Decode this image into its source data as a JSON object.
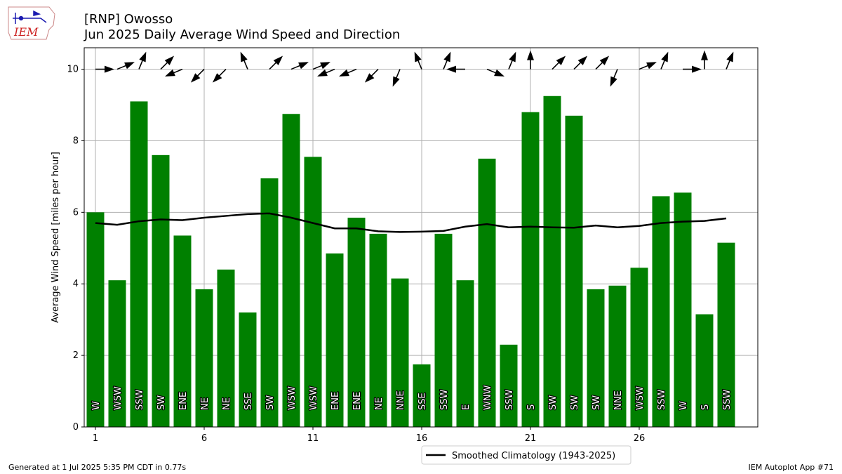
{
  "header": {
    "station": "[RNP] Owosso",
    "subtitle": "Jun 2025 Daily Average Wind Speed and Direction",
    "logo_text": "IEM"
  },
  "footer": {
    "generated": "Generated at 1 Jul 2025 5:35 PM CDT in 0.77s",
    "app": "IEM Autoplot App #71"
  },
  "colors": {
    "bar": "#008000",
    "climo_line": "#000000",
    "grid": "#b0b0b0",
    "logo_text": "#cc2222",
    "logo_icon": "#1a1ab0"
  },
  "chart_data": {
    "type": "bar",
    "ylabel": "Average Wind Speed [miles per hour]",
    "ylim": [
      0,
      10.6
    ],
    "yticks": [
      0,
      2,
      4,
      6,
      8,
      10
    ],
    "xticks": [
      1,
      6,
      11,
      16,
      21,
      26
    ],
    "grid": true,
    "legend_position": "bottom-center",
    "days": [
      1,
      2,
      3,
      4,
      5,
      6,
      7,
      8,
      9,
      10,
      11,
      12,
      13,
      14,
      15,
      16,
      17,
      18,
      19,
      20,
      21,
      22,
      23,
      24,
      25,
      26,
      27,
      28,
      29,
      30
    ],
    "series": [
      {
        "type": "bar",
        "values": [
          6.0,
          4.1,
          9.1,
          7.6,
          5.35,
          3.85,
          4.4,
          3.2,
          6.95,
          8.75,
          7.55,
          4.85,
          5.85,
          5.4,
          4.15,
          1.75,
          5.4,
          4.1,
          7.5,
          2.3,
          8.8,
          9.25,
          8.7,
          3.85,
          3.95,
          4.45,
          6.45,
          6.55,
          3.15,
          5.15
        ],
        "direction_labels": [
          "W",
          "WSW",
          "SSW",
          "SW",
          "ENE",
          "NE",
          "NE",
          "SSE",
          "SW",
          "WSW",
          "WSW",
          "ENE",
          "ENE",
          "NE",
          "NNE",
          "SSE",
          "SSW",
          "E",
          "WNW",
          "SSW",
          "S",
          "SW",
          "SW",
          "SW",
          "NNE",
          "WSW",
          "SSW",
          "W",
          "S",
          "SSW"
        ],
        "direction_degrees": [
          270,
          247.5,
          202.5,
          225,
          67.5,
          45,
          45,
          157.5,
          225,
          247.5,
          247.5,
          67.5,
          67.5,
          45,
          22.5,
          157.5,
          202.5,
          90,
          292.5,
          202.5,
          180,
          225,
          225,
          225,
          22.5,
          247.5,
          202.5,
          270,
          180,
          202.5
        ]
      },
      {
        "type": "line",
        "name": "Smoothed Climatology (1943-2025)",
        "values": [
          5.7,
          5.65,
          5.75,
          5.8,
          5.78,
          5.85,
          5.9,
          5.95,
          5.97,
          5.85,
          5.7,
          5.55,
          5.55,
          5.47,
          5.45,
          5.46,
          5.48,
          5.6,
          5.67,
          5.58,
          5.6,
          5.58,
          5.57,
          5.63,
          5.58,
          5.62,
          5.7,
          5.74,
          5.76,
          5.83
        ]
      }
    ]
  }
}
